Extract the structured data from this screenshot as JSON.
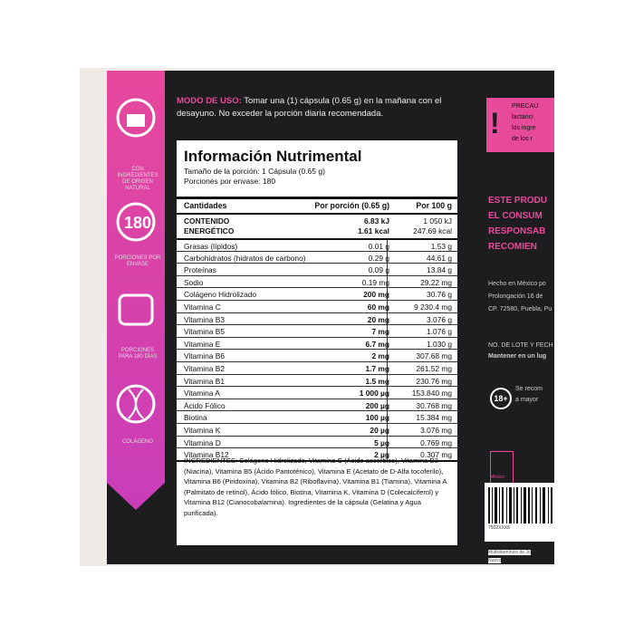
{
  "usage": {
    "label": "MODO DE USO:",
    "text": "Tomar una (1) cápsula (0.65 g) en la mañana con el desayuno. No exceder la porción diaria recomendada."
  },
  "badges": {
    "natural": "CON INGREDIENTES DE ORIGEN NATURAL",
    "count": "180",
    "servings": "PORCIONES POR ENVASE",
    "days": "PORCIONES PARA 180 DÍAS",
    "collagen": "COLÁGENO"
  },
  "table": {
    "title": "Información Nutrimental",
    "serving": "Tamaño de la porción: 1 Cápsula (0.65 g)",
    "servings": "Porciones por envase: 180",
    "header": [
      "Cantidades",
      "Por porción (0.65 g)",
      "Por 100 g"
    ],
    "energy": {
      "label": [
        "CONTENIDO",
        "ENERGÉTICO"
      ],
      "portion": [
        "6.83 kJ",
        "1.61 kcal"
      ],
      "per100": [
        "1 050 kJ",
        "247.69 kcal"
      ]
    },
    "rows": [
      [
        "Grasas (lípidos)",
        "0.01 g",
        "1.53 g"
      ],
      [
        "Carbohidratos (hidratos de carbono)",
        "0.29 g",
        "44.61 g"
      ],
      [
        "Proteínas",
        "0.09 g",
        "13.84 g"
      ],
      [
        "Sodio",
        "0.19 mg",
        "29.22 mg"
      ],
      [
        "Colágeno Hidrolizado",
        "200 mg",
        "30.76 g"
      ],
      [
        "Vitamina C",
        "60 mg",
        "9 230.4 mg"
      ],
      [
        "Vitamina B3",
        "20 mg",
        "3.076 g"
      ],
      [
        "Vitamina B5",
        "7 mg",
        "1.076 g"
      ],
      [
        "Vitamina E",
        "6.7 mg",
        "1.030 g"
      ],
      [
        "Vitamina B6",
        "2 mg",
        "307.68 mg"
      ],
      [
        "Vitamina B2",
        "1.7 mg",
        "261.52 mg"
      ],
      [
        "Vitamina B1",
        "1.5 mg",
        "230.76 mg"
      ],
      [
        "Vitamina A",
        "1 000 µg",
        "153.840 mg"
      ],
      [
        "Ácido Fólico",
        "200 µg",
        "30.768 mg"
      ],
      [
        "Biotina",
        "100 µg",
        "15.384 mg"
      ],
      [
        "Vitamina K",
        "20 µg",
        "3.076 mg"
      ],
      [
        "Vitamina D",
        "5 µg",
        "0.769 mg"
      ],
      [
        "Vitamina B12",
        "2 µg",
        "0.307 mg"
      ]
    ],
    "ingredients": "INGREDIENTES: Colágeno Hidrolizado, Vitamina C (Ácido ascórbico), Vitamina B3 (Niacina), Vitamina B5 (Ácido Pantoténico), Vitamina E (Acetato de D-Alfa tocoferilo), Vitamina B6 (Piridoxina), Vitamina B2 (Riboflavina), Vitamina B1 (Tiamina), Vitamina A (Palmitato de retinol), Ácido fólico, Biotina, Vitamina K, Vitamina D (Colecalciferol) y Vitamina B12 (Cianocobalamina). Ingredientes de la cápsula (Gelatina y Agua purificada)."
  },
  "side": {
    "warning": [
      "PRECAU",
      "lactanci",
      "los ingre",
      "de los r"
    ],
    "notice": [
      "ESTE PRODU",
      "EL CONSUM",
      "RESPONSAB",
      "RECOMIEN"
    ],
    "address": [
      "Hecho en México po",
      "Prolongación 16 de",
      "CP. 72580, Puebla, Pu"
    ],
    "lot": "NO. DE LOTE Y FECH",
    "keep": "Mantener en un lug",
    "age": "18+",
    "age_text": [
      "Se recom",
      "a mayor"
    ],
    "origin": "México",
    "barcode": "7502XXX8",
    "footer": [
      "Multivitamínico de Jo",
      "Nuevo"
    ]
  }
}
